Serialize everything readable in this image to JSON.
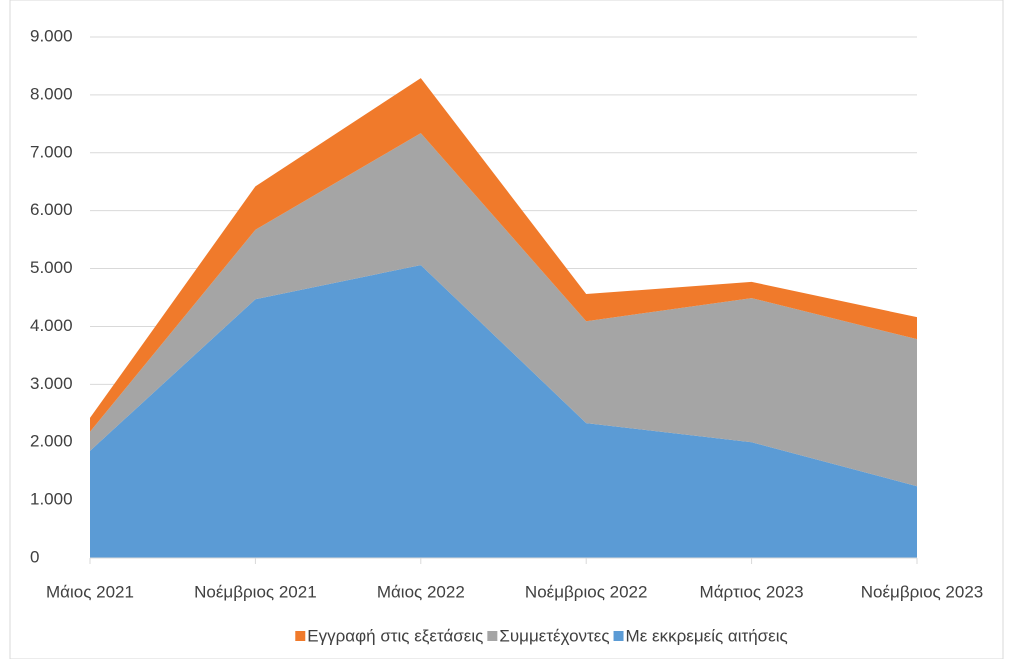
{
  "chart_data": {
    "type": "stacked-area",
    "categories": [
      "Μάιος 2021",
      "Νοέμβριος 2021",
      "Μάιος 2022",
      "Νοέμβριος 2022",
      "Μάρτιος 2023",
      "Νοέμβριος 2023"
    ],
    "series": [
      {
        "name": "Εγγραφή στις εξετάσεις",
        "color": "#f07a2b",
        "values": [
          240,
          750,
          950,
          470,
          280,
          380
        ]
      },
      {
        "name": "Συμμετέχοντες",
        "color": "#a5a5a5",
        "values": [
          330,
          1200,
          2280,
          1760,
          2490,
          2540
        ]
      },
      {
        "name": "Με εκκρεμείς αιτήσεις",
        "color": "#5b9bd5",
        "values": [
          1850,
          4470,
          5060,
          2330,
          2000,
          1240
        ]
      }
    ],
    "ylim": [
      0,
      9000
    ],
    "yticks": [
      0,
      {
        "value": 1000,
        "label": "1.000"
      },
      {
        "value": 2000,
        "label": "2.000"
      },
      {
        "value": 3000,
        "label": "3.000"
      },
      {
        "value": 4000,
        "label": "4.000"
      },
      {
        "value": 5000,
        "label": "5.000"
      },
      {
        "value": 6000,
        "label": "6.000"
      },
      {
        "value": 7000,
        "label": "7.000"
      },
      {
        "value": 8000,
        "label": "8.000"
      },
      {
        "value": 9000,
        "label": "9.000"
      }
    ],
    "grid": true,
    "legend": "bottom"
  }
}
